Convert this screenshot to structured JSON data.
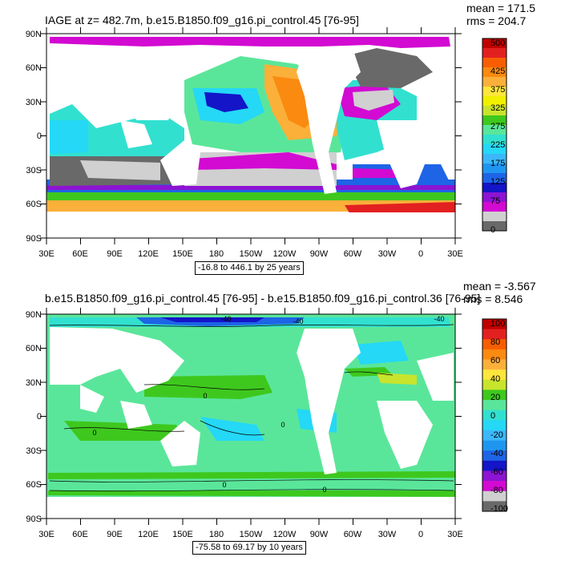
{
  "panels": [
    {
      "title": "IAGE at z= 482.7m, b.e15.B1850.f09_g16.pi_control.45 [76-95]",
      "mean": "mean = 171.5",
      "rms": "rms = 204.7",
      "range": "-16.8 to 446.1 by 25 years",
      "lat_labels": [
        "90N",
        "60N",
        "30N",
        "0",
        "30S",
        "60S",
        "90S"
      ],
      "lon_labels": [
        "30E",
        "60E",
        "90E",
        "120E",
        "150E",
        "180",
        "150W",
        "120W",
        "90W",
        "60W",
        "30W",
        "0",
        "30E"
      ],
      "colorbar": {
        "labels": [
          "500",
          "425",
          "375",
          "325",
          "275",
          "225",
          "175",
          "125",
          "75",
          "0"
        ],
        "colors": [
          "#C00000",
          "#E32020",
          "#F85E00",
          "#FA8A10",
          "#FBB03A",
          "#FEE63C",
          "#F0F000",
          "#C8E42C",
          "#3EC81E",
          "#5AE69A",
          "#32E0D0",
          "#24D8F6",
          "#3CB8FA",
          "#1E96F0",
          "#1E64E6",
          "#1414C8",
          "#8C14D2",
          "#D20AD2",
          "#D0D0D0",
          "#696969"
        ]
      }
    },
    {
      "title": "b.e15.B1850.f09_g16.pi_control.45 [76-95] - b.e15.B1850.f09_g16.pi_control.36 [76-95]",
      "mean": "mean = -3.567",
      "rms": "rms = 8.546",
      "range": "-75.58 to 69.17 by 10 years",
      "lat_labels": [
        "90N",
        "60N",
        "30N",
        "0",
        "30S",
        "60S",
        "90S"
      ],
      "lon_labels": [
        "30E",
        "60E",
        "90E",
        "120E",
        "150E",
        "180",
        "150W",
        "120W",
        "90W",
        "60W",
        "30W",
        "0",
        "30E"
      ],
      "contour_labels": [
        "-40",
        "-40",
        "-40",
        "0",
        "0",
        "0",
        "0",
        "0"
      ],
      "colorbar": {
        "labels": [
          "100",
          "80",
          "60",
          "40",
          "20",
          "0",
          "-20",
          "-40",
          "-60",
          "-80",
          "-100"
        ],
        "colors": [
          "#C00000",
          "#E32020",
          "#F85E00",
          "#FA8A10",
          "#FBB03A",
          "#FEE63C",
          "#C8E42C",
          "#3EC81E",
          "#5AE69A",
          "#32E0D0",
          "#24D8F6",
          "#3CB8FA",
          "#1E96F0",
          "#1E64E6",
          "#1414C8",
          "#8C14D2",
          "#D20AD2",
          "#D0D0D0",
          "#696969"
        ]
      }
    }
  ]
}
